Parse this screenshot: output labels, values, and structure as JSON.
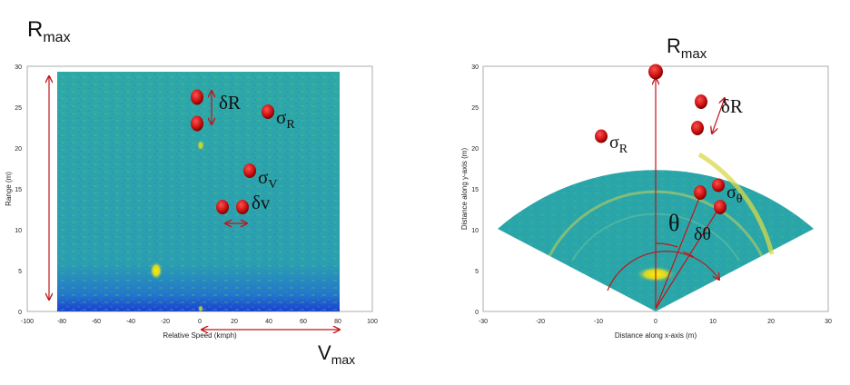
{
  "left_plot": {
    "title_r": "R",
    "title_r_sub": "max",
    "xlabel": "Relative Speed (kmph)",
    "ylabel": "Range (m)",
    "xticks": [
      "-100",
      "-80",
      "-60",
      "-40",
      "-20",
      "0",
      "20",
      "40",
      "60",
      "80",
      "100"
    ],
    "yticks": [
      "0",
      "5",
      "10",
      "15",
      "20",
      "25",
      "30"
    ],
    "annotations": {
      "delta_r": "δR",
      "sigma_r": "σ",
      "sigma_r_sub": "R",
      "sigma_v": "σ",
      "sigma_v_sub": "V",
      "delta_v": "δv",
      "vmax": "V",
      "vmax_sub": "max"
    }
  },
  "right_plot": {
    "title_r": "R",
    "title_r_sub": "max",
    "xlabel": "Distance along x-axis (m)",
    "ylabel": "Distance along y-axis (m)",
    "xticks": [
      "-30",
      "-20",
      "-10",
      "0",
      "10",
      "20",
      "30"
    ],
    "yticks": [
      "0",
      "5",
      "10",
      "15",
      "20",
      "25",
      "30"
    ],
    "annotations": {
      "delta_r": "δR",
      "sigma_r": "σ",
      "sigma_r_sub": "R",
      "sigma_theta": "σ",
      "sigma_theta_sub": "θ",
      "theta": "θ",
      "delta_theta": "δθ"
    }
  },
  "colors": {
    "arrow": "#c0161b",
    "dot": "#cc1111",
    "plot_bg": "#2aa6a8"
  }
}
